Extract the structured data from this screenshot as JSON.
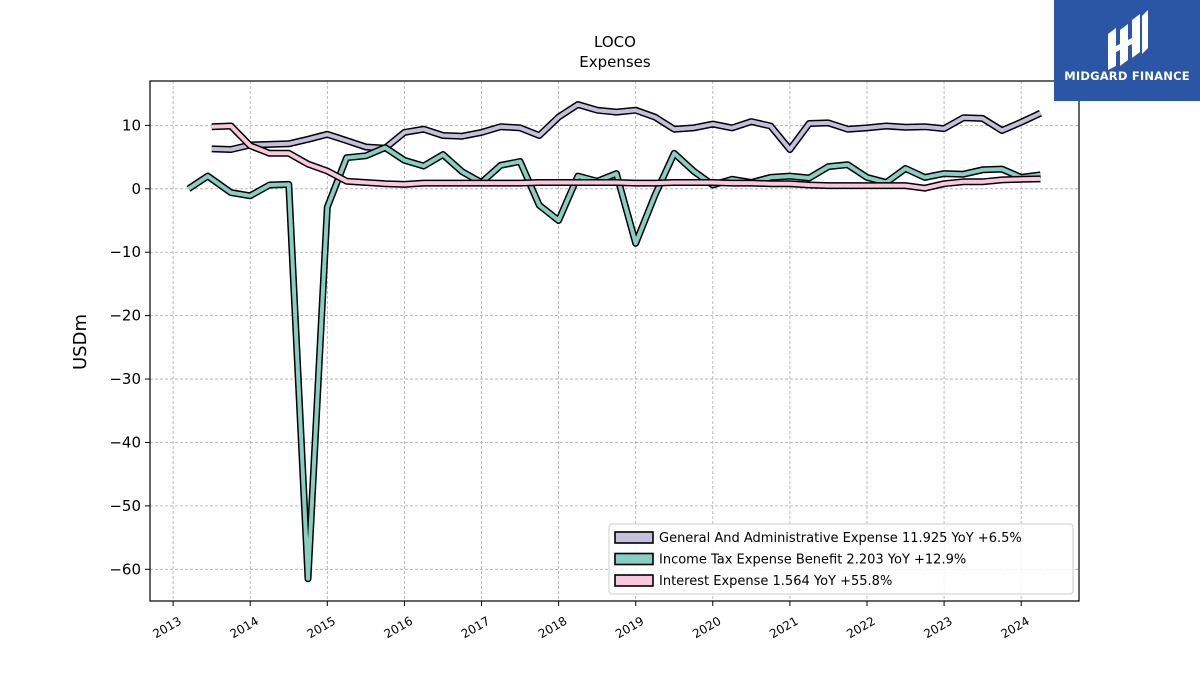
{
  "chart_data": {
    "type": "line",
    "title": "LOCO",
    "subtitle": "Expenses",
    "ylabel": "USDm",
    "xlabel": "",
    "xlim": [
      2012.7,
      2024.75
    ],
    "ylim": [
      -65,
      17
    ],
    "y_ticks": [
      10,
      0,
      -10,
      -20,
      -30,
      -40,
      -50,
      -60
    ],
    "y_tick_labels": [
      "10",
      "0",
      "−10",
      "−20",
      "−30",
      "−40",
      "−50",
      "−60"
    ],
    "x_ticks": [
      2013,
      2014,
      2015,
      2016,
      2017,
      2018,
      2019,
      2020,
      2021,
      2022,
      2023,
      2024
    ],
    "x_tick_labels": [
      "2013",
      "2014",
      "2015",
      "2016",
      "2017",
      "2018",
      "2019",
      "2020",
      "2021",
      "2022",
      "2023",
      "2024"
    ],
    "grid": true,
    "legend_position": "lower-right",
    "series": [
      {
        "name": "General And Administrative Expense",
        "legend_label": "General And Administrative Expense  11.925 YoY +6.5%",
        "color": "#c3bfdc",
        "x": [
          2013.5,
          2013.75,
          2014.0,
          2014.25,
          2014.5,
          2014.75,
          2015.0,
          2015.25,
          2015.5,
          2015.75,
          2016.0,
          2016.25,
          2016.5,
          2016.75,
          2017.0,
          2017.25,
          2017.5,
          2017.75,
          2018.0,
          2018.25,
          2018.5,
          2018.75,
          2019.0,
          2019.25,
          2019.5,
          2019.75,
          2020.0,
          2020.25,
          2020.5,
          2020.75,
          2021.0,
          2021.25,
          2021.5,
          2021.75,
          2022.0,
          2022.25,
          2022.5,
          2022.75,
          2023.0,
          2023.25,
          2023.5,
          2023.75,
          2024.0,
          2024.25
        ],
        "values": [
          6.3,
          6.2,
          6.9,
          7.0,
          7.1,
          7.8,
          8.6,
          7.6,
          6.6,
          6.4,
          8.9,
          9.4,
          8.4,
          8.3,
          8.9,
          9.8,
          9.6,
          8.4,
          11.3,
          13.3,
          12.4,
          12.1,
          12.4,
          11.3,
          9.4,
          9.6,
          10.2,
          9.6,
          10.6,
          9.9,
          6.2,
          10.3,
          10.4,
          9.4,
          9.6,
          9.9,
          9.7,
          9.8,
          9.5,
          11.2,
          11.1,
          9.2,
          10.5,
          11.925
        ]
      },
      {
        "name": "Income Tax Expense Benefit",
        "legend_label": "Income Tax Expense Benefit  2.203 YoY +12.9%",
        "color": "#86cfc1",
        "x": [
          2013.2,
          2013.45,
          2013.75,
          2014.0,
          2014.25,
          2014.5,
          2014.75,
          2015.0,
          2015.25,
          2015.5,
          2015.75,
          2016.0,
          2016.25,
          2016.5,
          2016.75,
          2017.0,
          2017.25,
          2017.5,
          2017.75,
          2018.0,
          2018.25,
          2018.5,
          2018.75,
          2019.0,
          2019.25,
          2019.5,
          2019.75,
          2020.0,
          2020.25,
          2020.5,
          2020.75,
          2021.0,
          2021.25,
          2021.5,
          2021.75,
          2022.0,
          2022.25,
          2022.5,
          2022.75,
          2023.0,
          2023.25,
          2023.5,
          2023.75,
          2024.0,
          2024.25
        ],
        "values": [
          0.0,
          2.0,
          -0.6,
          -1.1,
          0.6,
          0.7,
          -61.5,
          -2.9,
          4.9,
          5.2,
          6.5,
          4.5,
          3.6,
          5.4,
          2.7,
          1.0,
          3.7,
          4.3,
          -2.6,
          -5.0,
          2.0,
          1.2,
          2.4,
          -8.6,
          -1.0,
          5.6,
          2.8,
          0.6,
          1.5,
          1.0,
          1.8,
          2.0,
          1.7,
          3.5,
          3.8,
          1.8,
          1.0,
          3.2,
          1.8,
          2.4,
          2.3,
          3.0,
          3.1,
          1.8,
          2.203
        ]
      },
      {
        "name": "Interest Expense",
        "legend_label": "Interest Expense  1.564 YoY +55.8%",
        "color": "#fbc7dc",
        "x": [
          2013.5,
          2013.75,
          2014.0,
          2014.25,
          2014.5,
          2014.75,
          2015.0,
          2015.25,
          2015.5,
          2015.75,
          2016.0,
          2016.25,
          2016.5,
          2016.75,
          2017.0,
          2017.25,
          2017.5,
          2017.75,
          2018.0,
          2018.25,
          2018.5,
          2018.75,
          2019.0,
          2019.25,
          2019.5,
          2019.75,
          2020.0,
          2020.25,
          2020.5,
          2020.75,
          2021.0,
          2021.25,
          2021.5,
          2021.75,
          2022.0,
          2022.25,
          2022.5,
          2022.75,
          2023.0,
          2023.25,
          2023.5,
          2023.75,
          2024.0,
          2024.25
        ],
        "values": [
          9.8,
          9.9,
          6.8,
          5.6,
          5.6,
          3.9,
          2.8,
          1.2,
          1.0,
          0.8,
          0.7,
          0.9,
          0.9,
          0.9,
          0.9,
          0.9,
          0.9,
          1.0,
          1.0,
          1.0,
          1.0,
          1.0,
          0.9,
          0.9,
          1.0,
          1.0,
          1.0,
          0.9,
          0.9,
          0.8,
          0.8,
          0.6,
          0.5,
          0.5,
          0.5,
          0.5,
          0.5,
          0.1,
          0.8,
          1.1,
          1.1,
          1.4,
          1.5,
          1.564
        ]
      }
    ]
  },
  "logo": {
    "text": "MIDGARD FINANCE"
  }
}
